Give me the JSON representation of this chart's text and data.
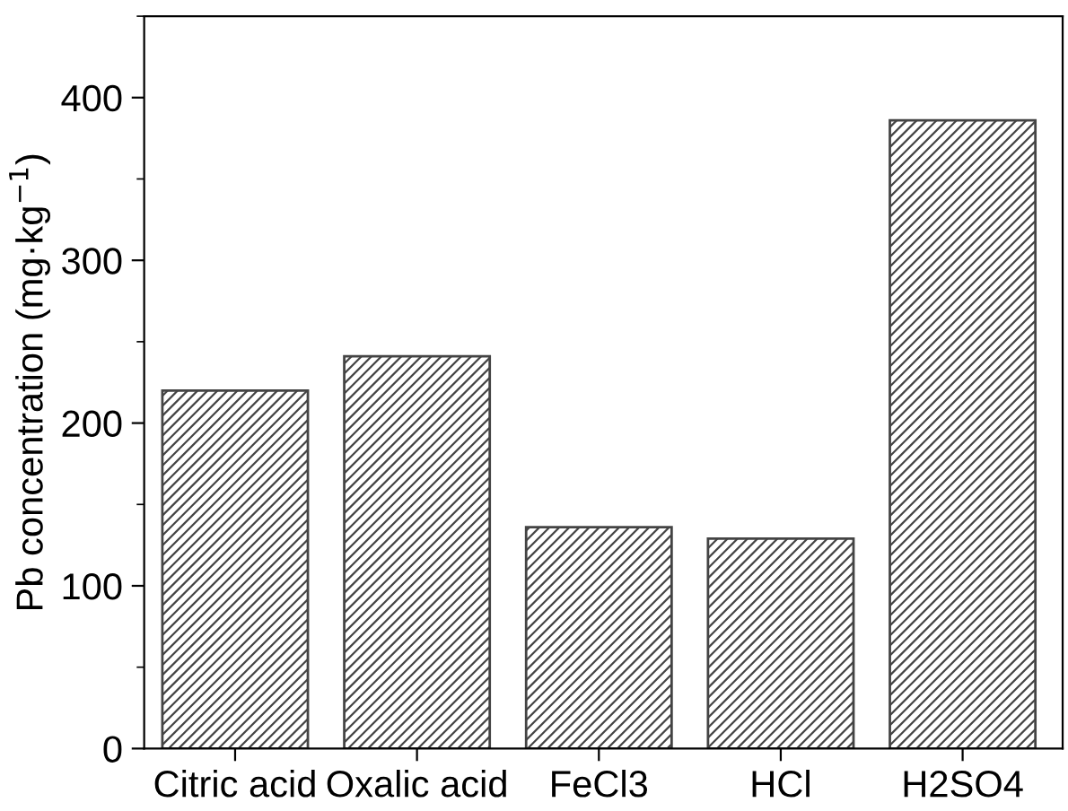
{
  "chart_data": {
    "type": "bar",
    "ylabel": "Pb concentration (mg·kg$^{−1}$)",
    "categories": [
      "Citric acid",
      "Oxalic acid",
      "FeCl3",
      "HCl",
      "H2SO4"
    ],
    "values": [
      220,
      241,
      136,
      129,
      386
    ],
    "color": "#444444",
    "ylim": [
      0,
      450
    ],
    "yticks": [
      0,
      100,
      200,
      300,
      400
    ],
    "grid": false
  }
}
